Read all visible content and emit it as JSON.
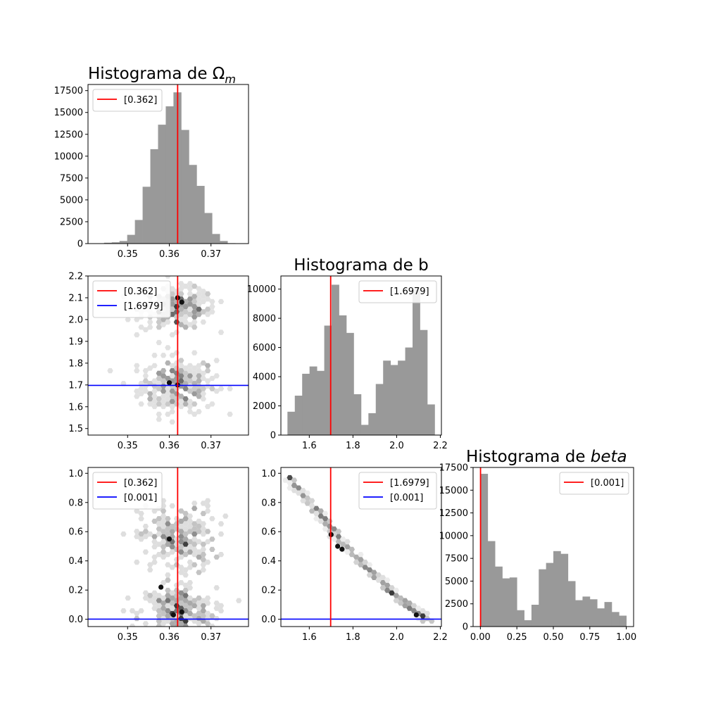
{
  "chart_data": [
    {
      "id": "hist_om",
      "type": "bar",
      "title": "Histograma de Ω",
      "title_subscript": "m",
      "x_bin_edges_start": 0.3425,
      "x_bin_width": 0.00185,
      "values": [
        0,
        100,
        150,
        300,
        1000,
        2700,
        6500,
        10800,
        13600,
        15700,
        17300,
        13000,
        9000,
        6600,
        3500,
        1100,
        300,
        50,
        0
      ],
      "xlim": [
        0.3405,
        0.379
      ],
      "ylim": [
        0,
        18200
      ],
      "x_ticks": [
        "0.35",
        "0.36",
        "0.37"
      ],
      "y_ticks": [
        "0",
        "2500",
        "5000",
        "7500",
        "10000",
        "12500",
        "15000",
        "17500"
      ],
      "vline": 0.362,
      "legend": [
        {
          "label": "[0.362]",
          "color": "#ff0000"
        }
      ],
      "legend_position": "upper-left",
      "bar_color": "#999999"
    },
    {
      "id": "hex_om_b",
      "type": "scatter",
      "xlim": [
        0.3405,
        0.379
      ],
      "ylim": [
        1.47,
        2.2
      ],
      "x_ticks": [
        "0.35",
        "0.36",
        "0.37"
      ],
      "y_ticks": [
        "1.5",
        "1.6",
        "1.7",
        "1.8",
        "1.9",
        "2.0",
        "2.1",
        "2.2"
      ],
      "vline": 0.362,
      "hline": 1.6979,
      "legend": [
        {
          "label": "[0.362]",
          "color": "#ff0000"
        },
        {
          "label": "[1.6979]",
          "color": "#0000ff"
        }
      ],
      "legend_position": "upper-left",
      "clusters": [
        {
          "x": 0.362,
          "y": 1.7,
          "sx": 0.0045,
          "sy": 0.065,
          "n": 260
        },
        {
          "x": 0.362,
          "y": 2.05,
          "sx": 0.0045,
          "sy": 0.045,
          "n": 240
        }
      ],
      "hot_spots": [
        [
          0.363,
          2.08
        ],
        [
          0.362,
          2.1
        ],
        [
          0.36,
          1.71
        ],
        [
          0.362,
          1.7
        ]
      ]
    },
    {
      "id": "hist_b",
      "type": "bar",
      "title": "Histograma de b",
      "x_bin_edges_start": 1.5,
      "x_bin_width": 0.0337,
      "values": [
        1600,
        2700,
        4200,
        4700,
        4400,
        7500,
        10300,
        8200,
        7000,
        2800,
        700,
        1500,
        3500,
        5100,
        4800,
        5100,
        6000,
        10000,
        7200,
        2100
      ],
      "xlim": [
        1.47,
        2.205
      ],
      "ylim": [
        0,
        10900
      ],
      "x_ticks": [
        "1.6",
        "1.8",
        "2.0",
        "2.2"
      ],
      "y_ticks": [
        "0",
        "2000",
        "4000",
        "6000",
        "8000",
        "10000"
      ],
      "vline": 1.6979,
      "legend": [
        {
          "label": "[1.6979]",
          "color": "#ff0000"
        }
      ],
      "legend_position": "upper-right",
      "bar_color": "#999999"
    },
    {
      "id": "hex_om_beta",
      "type": "scatter",
      "xlim": [
        0.3405,
        0.379
      ],
      "ylim": [
        -0.05,
        1.04
      ],
      "x_ticks": [
        "0.35",
        "0.36",
        "0.37"
      ],
      "y_ticks": [
        "0.0",
        "0.2",
        "0.4",
        "0.6",
        "0.8",
        "1.0"
      ],
      "vline": 0.362,
      "hline": 0.001,
      "legend": [
        {
          "label": "[0.362]",
          "color": "#ff0000"
        },
        {
          "label": "[0.001]",
          "color": "#0000ff"
        }
      ],
      "legend_position": "upper-left",
      "clusters": [
        {
          "x": 0.362,
          "y": 0.05,
          "sx": 0.0045,
          "sy": 0.09,
          "n": 260
        },
        {
          "x": 0.362,
          "y": 0.55,
          "sx": 0.0045,
          "sy": 0.12,
          "n": 240
        }
      ],
      "hot_spots": [
        [
          0.361,
          0.03
        ],
        [
          0.363,
          0.05
        ],
        [
          0.36,
          0.55
        ],
        [
          0.358,
          0.22
        ]
      ]
    },
    {
      "id": "hex_b_beta",
      "type": "scatter",
      "xlim": [
        1.47,
        2.205
      ],
      "ylim": [
        -0.05,
        1.04
      ],
      "x_ticks": [
        "1.6",
        "1.8",
        "2.0",
        "2.2"
      ],
      "y_ticks": [
        "0.0",
        "0.2",
        "0.4",
        "0.6",
        "0.8",
        "1.0"
      ],
      "vline": 1.6979,
      "hline": 0.001,
      "legend": [
        {
          "label": "[1.6979]",
          "color": "#ff0000"
        },
        {
          "label": "[0.001]",
          "color": "#0000ff"
        }
      ],
      "legend_position": "upper-right",
      "curve": {
        "x_start": 1.5,
        "x_end": 2.15,
        "y_start": 0.98,
        "y_end": 0.0
      },
      "hot_spots": [
        [
          1.73,
          0.5
        ],
        [
          1.75,
          0.48
        ],
        [
          2.09,
          0.03
        ],
        [
          1.7,
          0.58
        ]
      ]
    },
    {
      "id": "hist_beta",
      "type": "bar",
      "title": "Histograma de ",
      "title_italic": "beta",
      "x_bin_edges_start": 0.0,
      "x_bin_width": 0.05,
      "values": [
        16800,
        9400,
        6600,
        5300,
        5400,
        1800,
        700,
        2400,
        6300,
        7000,
        8300,
        8000,
        5000,
        2900,
        3300,
        3000,
        2000,
        2700,
        1600,
        1200
      ],
      "xlim": [
        -0.05,
        1.05
      ],
      "ylim": [
        0,
        17500
      ],
      "x_ticks": [
        "0.00",
        "0.25",
        "0.50",
        "0.75",
        "1.00"
      ],
      "y_ticks": [
        "0",
        "2500",
        "5000",
        "7500",
        "10000",
        "12500",
        "15000",
        "17500"
      ],
      "vline": 0.001,
      "legend": [
        {
          "label": "[0.001]",
          "color": "#ff0000"
        }
      ],
      "legend_position": "upper-right",
      "bar_color": "#999999"
    }
  ]
}
